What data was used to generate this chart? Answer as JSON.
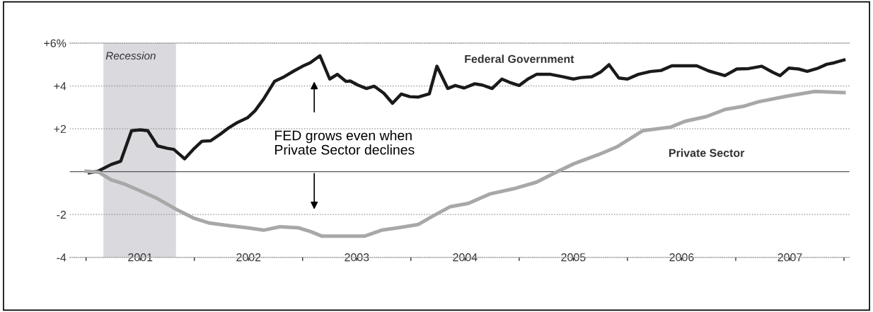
{
  "chart_data": {
    "type": "line",
    "xlim": [
      2000.85,
      2008.05
    ],
    "xticks": [
      {
        "value": 2001,
        "label": null
      },
      {
        "value": 2001.5,
        "label": "2001"
      },
      {
        "value": 2002,
        "label": null
      },
      {
        "value": 2002.5,
        "label": "2002"
      },
      {
        "value": 2003,
        "label": null
      },
      {
        "value": 2003.5,
        "label": "2003"
      },
      {
        "value": 2004,
        "label": null
      },
      {
        "value": 2004.5,
        "label": "2004"
      },
      {
        "value": 2005,
        "label": null
      },
      {
        "value": 2005.5,
        "label": "2005"
      },
      {
        "value": 2006,
        "label": null
      },
      {
        "value": 2006.5,
        "label": "2006"
      },
      {
        "value": 2007,
        "label": null
      },
      {
        "value": 2007.5,
        "label": "2007"
      },
      {
        "value": 2008,
        "label": null
      }
    ],
    "ylim": [
      -4,
      6
    ],
    "yticks": [
      {
        "value": -4,
        "label": "-4"
      },
      {
        "value": -2,
        "label": "-2"
      },
      {
        "value": 2,
        "label": "+2"
      },
      {
        "value": 4,
        "label": "+4"
      },
      {
        "value": 6,
        "label": "+6%"
      }
    ],
    "grid": "y",
    "series": [
      {
        "name": "Federal Government",
        "color": "#1a1a1a",
        "x": [
          2001.03,
          2001.11,
          2001.23,
          2001.32,
          2001.42,
          2001.5,
          2001.57,
          2001.66,
          2001.75,
          2001.81,
          2001.91,
          2001.99,
          2002.07,
          2002.15,
          2002.24,
          2002.31,
          2002.4,
          2002.49,
          2002.56,
          2002.64,
          2002.74,
          2002.83,
          2002.92,
          2003.0,
          2003.07,
          2003.16,
          2003.25,
          2003.32,
          2003.4,
          2003.44,
          2003.51,
          2003.59,
          2003.66,
          2003.75,
          2003.83,
          2003.91,
          2003.99,
          2004.07,
          2004.17,
          2004.24,
          2004.34,
          2004.41,
          2004.49,
          2004.59,
          2004.66,
          2004.75,
          2004.84,
          2004.91,
          2005.0,
          2005.08,
          2005.16,
          2005.29,
          2005.4,
          2005.5,
          2005.57,
          2005.67,
          2005.75,
          2005.83,
          2005.92,
          2006.0,
          2006.1,
          2006.21,
          2006.31,
          2006.41,
          2006.64,
          2006.75,
          2006.9,
          2007.01,
          2007.12,
          2007.24,
          2007.34,
          2007.41,
          2007.49,
          2007.58,
          2007.66,
          2007.75,
          2007.84,
          2007.91,
          2008.0
        ],
        "values": [
          -0.05,
          0.02,
          0.33,
          0.49,
          1.91,
          1.95,
          1.91,
          1.2,
          1.09,
          1.04,
          0.6,
          1.04,
          1.42,
          1.44,
          1.75,
          2.02,
          2.3,
          2.51,
          2.84,
          3.39,
          4.21,
          4.43,
          4.7,
          4.92,
          5.08,
          5.41,
          4.32,
          4.54,
          4.21,
          4.23,
          4.04,
          3.88,
          3.99,
          3.66,
          3.19,
          3.62,
          3.5,
          3.48,
          3.63,
          4.92,
          3.88,
          4.02,
          3.9,
          4.1,
          4.04,
          3.88,
          4.32,
          4.17,
          4.02,
          4.32,
          4.54,
          4.54,
          4.43,
          4.32,
          4.39,
          4.43,
          4.64,
          4.99,
          4.37,
          4.32,
          4.54,
          4.67,
          4.72,
          4.94,
          4.94,
          4.7,
          4.48,
          4.79,
          4.81,
          4.92,
          4.64,
          4.48,
          4.83,
          4.79,
          4.68,
          4.81,
          5.01,
          5.08,
          5.21
        ]
      },
      {
        "name": "Private Sector",
        "color": "#a8a8a8",
        "x": [
          2001.0,
          2001.12,
          2001.23,
          2001.34,
          2001.49,
          2001.66,
          2001.83,
          2001.99,
          2002.14,
          2002.31,
          2002.49,
          2002.64,
          2002.79,
          2002.96,
          2003.07,
          2003.18,
          2003.4,
          2003.57,
          2003.73,
          2003.88,
          2004.07,
          2004.2,
          2004.36,
          2004.53,
          2004.73,
          2004.97,
          2005.16,
          2005.36,
          2005.51,
          2005.73,
          2005.9,
          2006.14,
          2006.4,
          2006.53,
          2006.73,
          2006.9,
          2007.08,
          2007.21,
          2007.47,
          2007.73,
          2008.0
        ],
        "values": [
          0.02,
          -0.03,
          -0.38,
          -0.55,
          -0.87,
          -1.26,
          -1.75,
          -2.16,
          -2.4,
          -2.51,
          -2.62,
          -2.73,
          -2.57,
          -2.62,
          -2.79,
          -3.01,
          -3.01,
          -3.01,
          -2.73,
          -2.62,
          -2.46,
          -2.08,
          -1.64,
          -1.48,
          -1.04,
          -0.77,
          -0.49,
          0.02,
          0.38,
          0.79,
          1.15,
          1.91,
          2.08,
          2.35,
          2.57,
          2.9,
          3.06,
          3.26,
          3.52,
          3.74,
          3.69
        ]
      }
    ],
    "ref_lines": [
      {
        "axis": "y",
        "value": 0,
        "color": "#555555",
        "line_style": "solid"
      }
    ],
    "bands": [
      {
        "axis": "x",
        "from": 2001.16,
        "to": 2001.83,
        "label": "Recession",
        "color": "#d9d9de"
      }
    ],
    "annotations": [
      "FED grows even when\nPrivate Sector declines"
    ],
    "line_style": "solid",
    "marker": "none"
  }
}
